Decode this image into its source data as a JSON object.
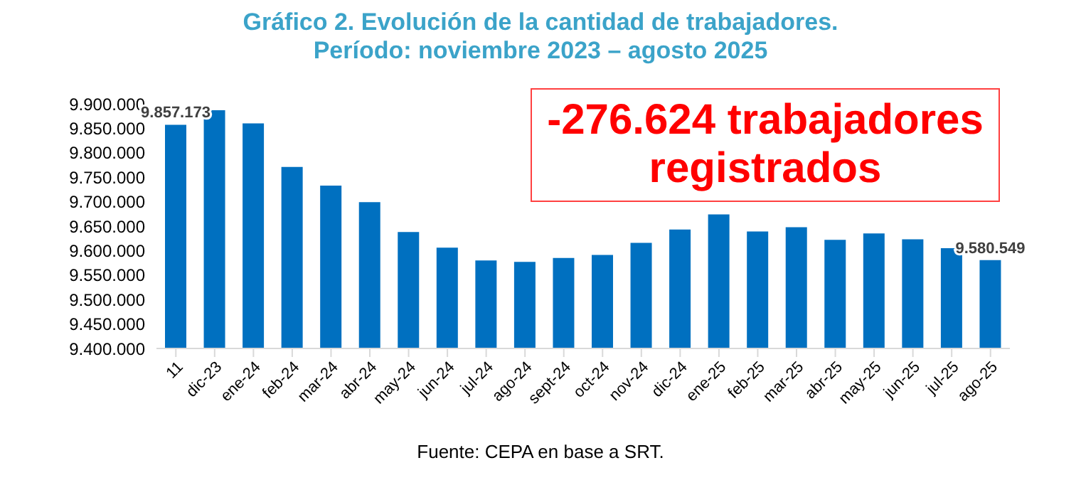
{
  "chart_data": {
    "type": "bar",
    "title": "Gráfico 2. Evolución de la cantidad de trabajadores.",
    "subtitle": "Período: noviembre 2023 – agosto 2025",
    "categories": [
      "11",
      "dic-23",
      "ene-24",
      "feb-24",
      "mar-24",
      "abr-24",
      "may-24",
      "jun-24",
      "jul-24",
      "ago-24",
      "sept-24",
      "oct-24",
      "nov-24",
      "dic-24",
      "ene-25",
      "feb-25",
      "mar-25",
      "abr-25",
      "may-25",
      "jun-25",
      "jul-25",
      "ago-25"
    ],
    "values": [
      9857173,
      9887000,
      9860000,
      9771000,
      9733000,
      9699000,
      9638000,
      9606000,
      9580000,
      9577000,
      9585000,
      9591000,
      9616000,
      9643000,
      9674000,
      9639000,
      9648000,
      9622000,
      9635000,
      9623000,
      9605000,
      9580549
    ],
    "value_labels": [
      "9.857.173",
      null,
      null,
      null,
      null,
      null,
      null,
      null,
      null,
      null,
      null,
      null,
      null,
      null,
      null,
      null,
      null,
      null,
      null,
      null,
      null,
      "9.580.549"
    ],
    "color": "#0070c0",
    "ylim": [
      9400000,
      9900000
    ],
    "yticks": [
      {
        "value": 9400000,
        "label": "9.400.000"
      },
      {
        "value": 9450000,
        "label": "9.450.000"
      },
      {
        "value": 9500000,
        "label": "9.500.000"
      },
      {
        "value": 9550000,
        "label": "9.550.000"
      },
      {
        "value": 9600000,
        "label": "9.600.000"
      },
      {
        "value": 9650000,
        "label": "9.650.000"
      },
      {
        "value": 9700000,
        "label": "9.700.000"
      },
      {
        "value": 9750000,
        "label": "9.750.000"
      },
      {
        "value": 9800000,
        "label": "9.800.000"
      },
      {
        "value": 9850000,
        "label": "9.850.000"
      },
      {
        "value": 9900000,
        "label": "9.900.000"
      }
    ],
    "annotations": [
      "-276.624 trabajadores registrados",
      "Fuente: CEPA en base a SRT."
    ]
  }
}
